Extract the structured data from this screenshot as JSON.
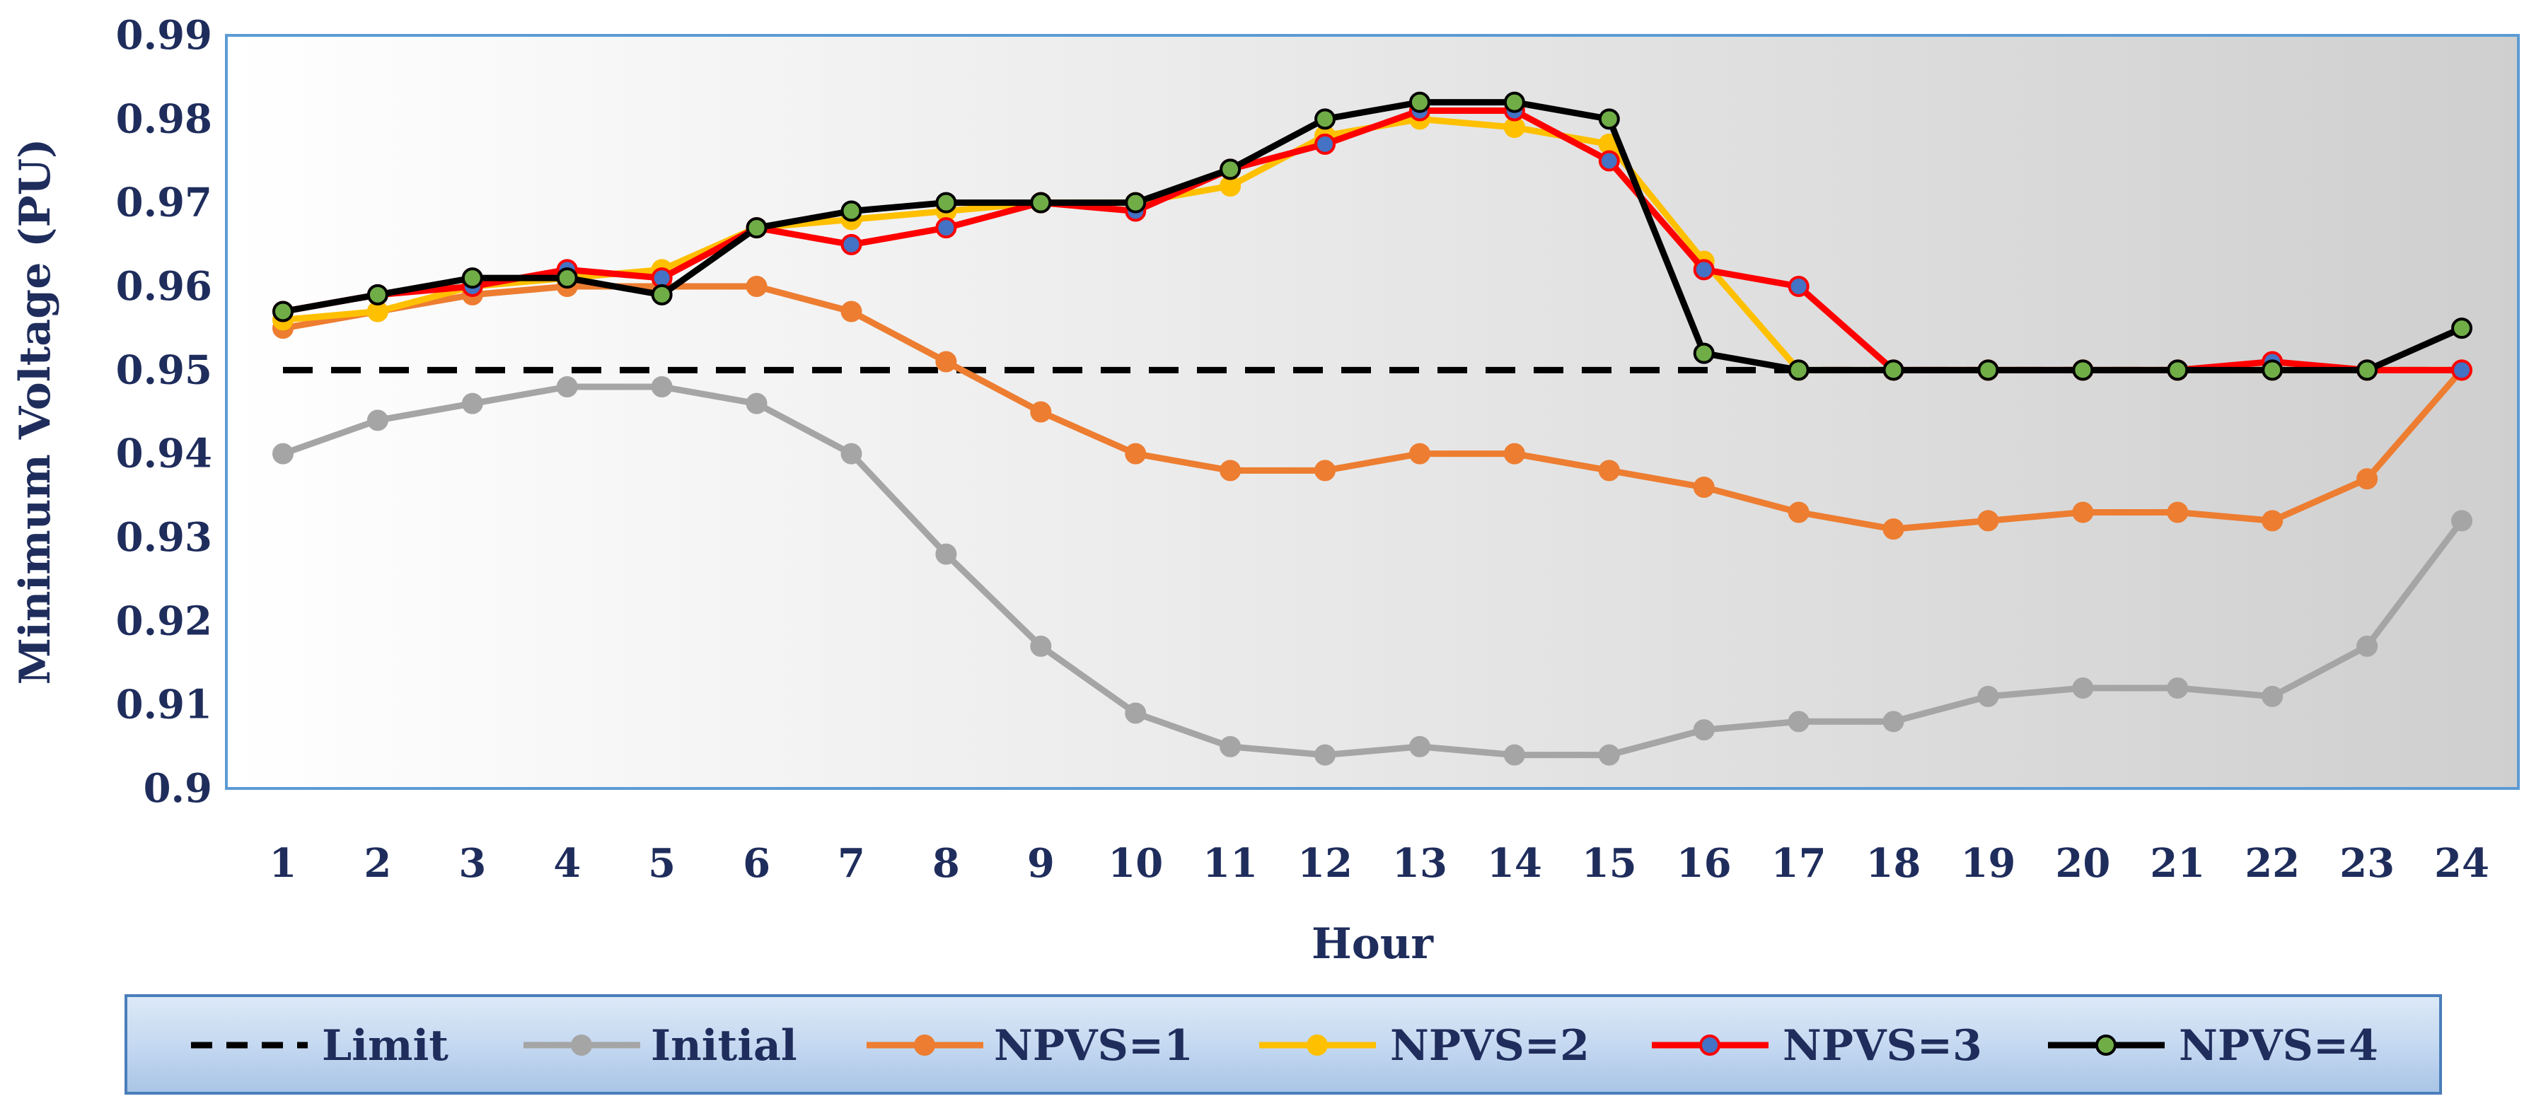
{
  "chart_data": {
    "type": "line",
    "title": "",
    "xlabel": "Hour",
    "ylabel": "Minimum Voltage (PU)",
    "x": [
      1,
      2,
      3,
      4,
      5,
      6,
      7,
      8,
      9,
      10,
      11,
      12,
      13,
      14,
      15,
      16,
      17,
      18,
      19,
      20,
      21,
      22,
      23,
      24
    ],
    "xticks": [
      "1",
      "2",
      "3",
      "4",
      "5",
      "6",
      "7",
      "8",
      "9",
      "10",
      "11",
      "12",
      "13",
      "14",
      "15",
      "16",
      "17",
      "18",
      "19",
      "20",
      "21",
      "22",
      "23",
      "24"
    ],
    "ylim": [
      0.9,
      0.99
    ],
    "yticks": [
      "0.9",
      "0.91",
      "0.92",
      "0.93",
      "0.94",
      "0.95",
      "0.96",
      "0.97",
      "0.98",
      "0.99"
    ],
    "grid": false,
    "legend_position": "bottom",
    "series": [
      {
        "name": "Limit",
        "color": "#000000",
        "dashed": true,
        "marker": "none",
        "values": [
          0.95,
          0.95,
          0.95,
          0.95,
          0.95,
          0.95,
          0.95,
          0.95,
          0.95,
          0.95,
          0.95,
          0.95,
          0.95,
          0.95,
          0.95,
          0.95,
          0.95,
          0.95,
          0.95,
          0.95,
          0.95,
          0.95,
          0.95,
          0.95
        ]
      },
      {
        "name": "Initial",
        "color": "#a5a5a5",
        "marker": "#a5a5a5",
        "values": [
          0.94,
          0.944,
          0.946,
          0.948,
          0.948,
          0.946,
          0.94,
          0.928,
          0.917,
          0.909,
          0.905,
          0.904,
          0.905,
          0.904,
          0.904,
          0.907,
          0.908,
          0.908,
          0.911,
          0.912,
          0.912,
          0.911,
          0.917,
          0.932
        ]
      },
      {
        "name": "NPVS=1",
        "color": "#ed7d31",
        "marker": "#ed7d31",
        "values": [
          0.955,
          0.957,
          0.959,
          0.96,
          0.96,
          0.96,
          0.957,
          0.951,
          0.945,
          0.94,
          0.938,
          0.938,
          0.94,
          0.94,
          0.938,
          0.936,
          0.933,
          0.931,
          0.932,
          0.933,
          0.933,
          0.932,
          0.937,
          0.95
        ]
      },
      {
        "name": "NPVS=2",
        "color": "#ffc000",
        "marker": "#ffc000",
        "values": [
          0.956,
          0.957,
          0.96,
          0.961,
          0.962,
          0.967,
          0.968,
          0.969,
          0.97,
          0.97,
          0.972,
          0.978,
          0.98,
          0.979,
          0.977,
          0.963,
          0.95,
          0.95,
          0.95,
          0.95,
          0.95,
          0.95,
          0.95,
          0.95
        ]
      },
      {
        "name": "NPVS=3",
        "color": "#ff0000",
        "marker": "#4472c4",
        "values": [
          0.957,
          0.959,
          0.96,
          0.962,
          0.961,
          0.967,
          0.965,
          0.967,
          0.97,
          0.969,
          0.974,
          0.977,
          0.981,
          0.981,
          0.975,
          0.962,
          0.96,
          0.95,
          0.95,
          0.95,
          0.95,
          0.951,
          0.95,
          0.95
        ]
      },
      {
        "name": "NPVS=4",
        "color": "#000000",
        "marker": "#70ad47",
        "values": [
          0.957,
          0.959,
          0.961,
          0.961,
          0.959,
          0.967,
          0.969,
          0.97,
          0.97,
          0.97,
          0.974,
          0.98,
          0.982,
          0.982,
          0.98,
          0.952,
          0.95,
          0.95,
          0.95,
          0.95,
          0.95,
          0.95,
          0.95,
          0.955
        ]
      }
    ]
  }
}
